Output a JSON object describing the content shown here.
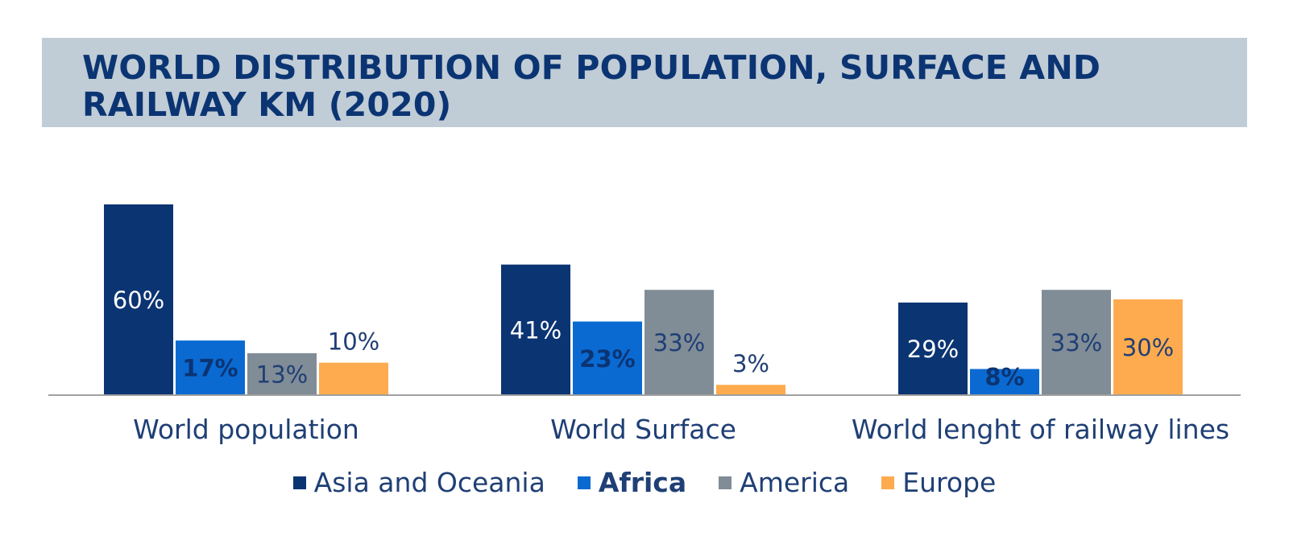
{
  "title": "WORLD DISTRIBUTION OF POPULATION, SURFACE AND RAILWAY KM (2020)",
  "colors": {
    "asia": "#0b3473",
    "africa": "#0a6ad2",
    "america": "#808c96",
    "europe": "#fdab4e",
    "axis": "#a0a0a0",
    "category_label": "#1f3f75"
  },
  "chart_data": {
    "type": "bar",
    "title": "WORLD DISTRIBUTION OF POPULATION, SURFACE AND RAILWAY KM (2020)",
    "categories": [
      "World population",
      "World Surface",
      "World lenght of railway lines"
    ],
    "series": [
      {
        "name": "Asia and Oceania",
        "key": "asia",
        "values": [
          60,
          41,
          29
        ],
        "labels": [
          "60%",
          "41%",
          "29%"
        ]
      },
      {
        "name": "Africa",
        "key": "africa",
        "values": [
          17,
          23,
          8
        ],
        "labels": [
          "17%",
          "23%",
          "8%"
        ]
      },
      {
        "name": "America",
        "key": "america",
        "values": [
          13,
          33,
          33
        ],
        "labels": [
          "13%",
          "33%",
          "33%"
        ]
      },
      {
        "name": "Europe",
        "key": "europe",
        "values": [
          10,
          3,
          30
        ],
        "labels": [
          "10%",
          "3%",
          "30%"
        ]
      }
    ],
    "ylim": [
      0,
      60
    ],
    "unit": "%",
    "grid": false,
    "legend_position": "bottom"
  }
}
